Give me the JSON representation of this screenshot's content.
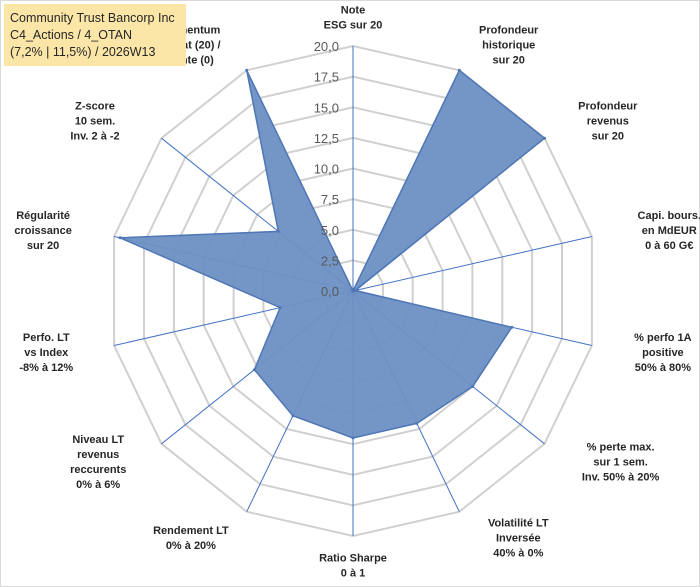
{
  "info": {
    "company": "Community Trust Bancorp Inc",
    "portfolio": "C4_Actions / 4_OTAN",
    "stats": "(7,2% | 11,5%) / 2026W13"
  },
  "chart_data": {
    "type": "radar",
    "rmin": 0,
    "rmax": 20,
    "ticks": [
      "0,0",
      "2,5",
      "5,0",
      "7,5",
      "10,0",
      "12,5",
      "15,0",
      "17,5",
      "20,0"
    ],
    "grid": true,
    "axes": [
      [
        "Note",
        "ESG sur 20"
      ],
      [
        "Profondeur",
        "historique",
        "sur 20"
      ],
      [
        "Profondeur",
        "revenus",
        "sur 20"
      ],
      [
        "Capi. bours.",
        "en MdEUR",
        "0 à 60 G€"
      ],
      [
        "% perfo 1A",
        "positive",
        "50% à 80%"
      ],
      [
        "% perte max.",
        "sur 1 sem.",
        "Inv. 50% à 20%"
      ],
      [
        "Volatilité LT",
        "Inversée",
        "40% à 0%"
      ],
      [
        "Ratio Sharpe",
        "0 à 1"
      ],
      [
        "Rendement LT",
        "0% à 20%"
      ],
      [
        "Niveau LT",
        "revenus",
        "reccurents",
        "0% à 6%"
      ],
      [
        "Perfo. LT",
        "vs Index",
        "-8% à 12%"
      ],
      [
        "Régularité",
        "croissance",
        "sur 20"
      ],
      [
        "Z-score",
        "10 sem.",
        "Inv. 2 à -2"
      ],
      [
        "Momentum",
        "Achat (20) /",
        "Vente (0)"
      ]
    ],
    "series": [
      {
        "values": [
          0,
          20,
          20,
          0.2,
          13.3,
          12.5,
          12.0,
          12.0,
          11.3,
          10.3,
          6.1,
          19.5,
          7.8,
          20
        ],
        "color": "#4f76b5",
        "fill": "#6d90c4"
      }
    ]
  }
}
